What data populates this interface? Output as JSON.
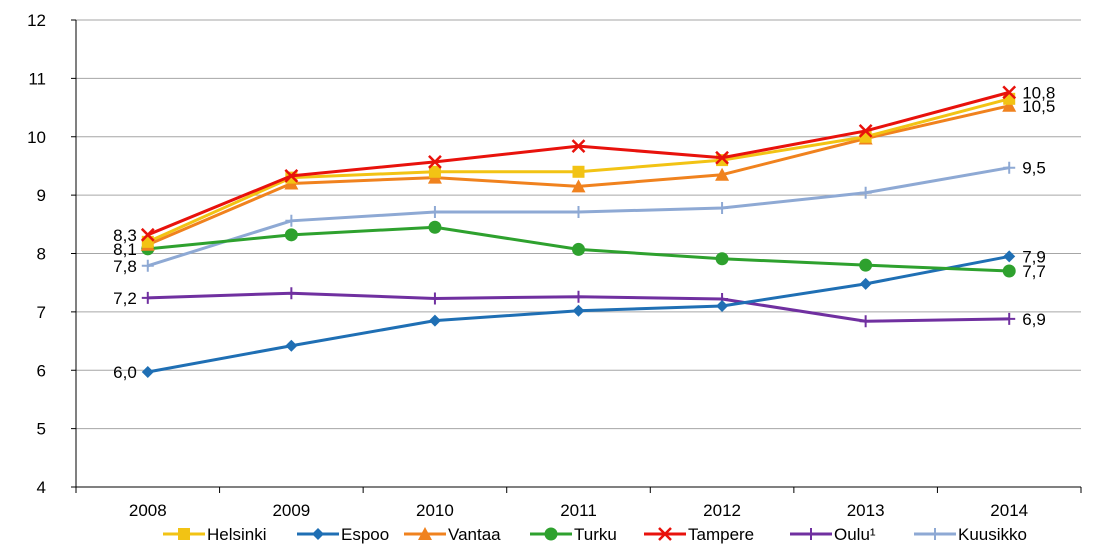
{
  "chart_data": {
    "type": "line",
    "title": "",
    "xlabel": "",
    "ylabel": "",
    "x": [
      "2008",
      "2009",
      "2010",
      "2011",
      "2012",
      "2013",
      "2014"
    ],
    "ylim": [
      4,
      12
    ],
    "yticks": [
      "4",
      "5",
      "6",
      "7",
      "8",
      "9",
      "10",
      "11",
      "12"
    ],
    "grid": "horizontal",
    "legend_position": "bottom",
    "series": [
      {
        "name": "Helsinki",
        "color": "#F2C314",
        "marker": "square",
        "values": [
          8.2,
          9.3,
          9.4,
          9.4,
          9.6,
          10.0,
          10.65
        ],
        "labels": [
          null,
          null,
          null,
          null,
          null,
          null,
          null
        ]
      },
      {
        "name": "Espoo",
        "color": "#1F6FB4",
        "marker": "diamond",
        "values": [
          5.97,
          6.42,
          6.85,
          7.02,
          7.1,
          7.48,
          7.95
        ],
        "labels": [
          "6,0",
          null,
          null,
          null,
          null,
          null,
          "7,9"
        ]
      },
      {
        "name": "Vantaa",
        "color": "#F0821E",
        "marker": "triangle",
        "values": [
          8.15,
          9.2,
          9.3,
          9.15,
          9.35,
          9.97,
          10.53
        ],
        "labels": [
          null,
          null,
          null,
          null,
          null,
          null,
          "10,5"
        ]
      },
      {
        "name": "Turku",
        "color": "#2EA12E",
        "marker": "circle",
        "values": [
          8.08,
          8.32,
          8.45,
          8.07,
          7.91,
          7.8,
          7.7
        ],
        "labels": [
          "8,1",
          null,
          null,
          null,
          null,
          null,
          "7,7"
        ]
      },
      {
        "name": "Tampere",
        "color": "#E8120C",
        "marker": "x",
        "values": [
          8.32,
          9.33,
          9.57,
          9.84,
          9.64,
          10.1,
          10.76
        ],
        "labels": [
          "8,3",
          null,
          null,
          null,
          null,
          null,
          "10,8"
        ]
      },
      {
        "name": "Oulu¹",
        "color": "#7030A0",
        "marker": "plus",
        "values": [
          7.24,
          7.32,
          7.23,
          7.26,
          7.22,
          6.84,
          6.88
        ],
        "labels": [
          "7,2",
          null,
          null,
          null,
          null,
          null,
          "6,9"
        ]
      },
      {
        "name": "Kuusikko",
        "color": "#8EA9D4",
        "marker": "plus",
        "values": [
          7.79,
          8.56,
          8.71,
          8.71,
          8.78,
          9.04,
          9.47
        ],
        "labels": [
          "7,8",
          null,
          null,
          null,
          null,
          null,
          "9,5"
        ]
      }
    ]
  }
}
